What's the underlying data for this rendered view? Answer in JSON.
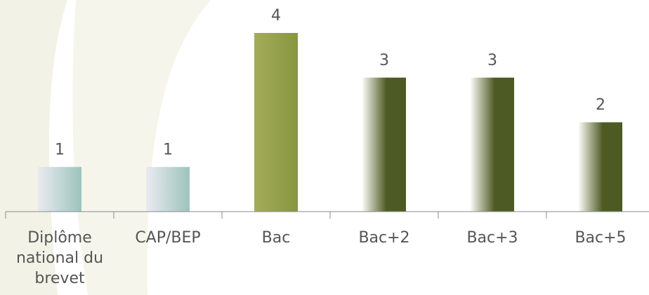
{
  "chart_data": {
    "type": "bar",
    "categories": [
      "Diplôme national du brevet",
      "CAP/BEP",
      "Bac",
      "Bac+2",
      "Bac+3",
      "Bac+5"
    ],
    "category_lines": [
      [
        "Diplôme",
        "national du",
        "brevet"
      ],
      [
        "CAP/BEP"
      ],
      [
        "Bac"
      ],
      [
        "Bac+2"
      ],
      [
        "Bac+3"
      ],
      [
        "Bac+5"
      ]
    ],
    "values": [
      1,
      1,
      4,
      3,
      3,
      2
    ],
    "ylim": [
      0,
      4
    ],
    "title": "",
    "xlabel": "",
    "ylabel": "",
    "grid": false,
    "legend": "none",
    "bar_styles": [
      "light-teal",
      "light-teal",
      "olive-solid",
      "dark-olive",
      "dark-olive",
      "dark-olive"
    ]
  },
  "colors": {
    "teal_light": "#eaeaf0",
    "teal": "#9cc4bd",
    "olive_light": "#a4ad5a",
    "olive": "#88963f",
    "dark_olive_light": "#fafaf5",
    "dark_olive": "#4e5a24",
    "axis": "#8a8a8a",
    "label": "#555555",
    "background_leaf": "#f2f2e6"
  }
}
